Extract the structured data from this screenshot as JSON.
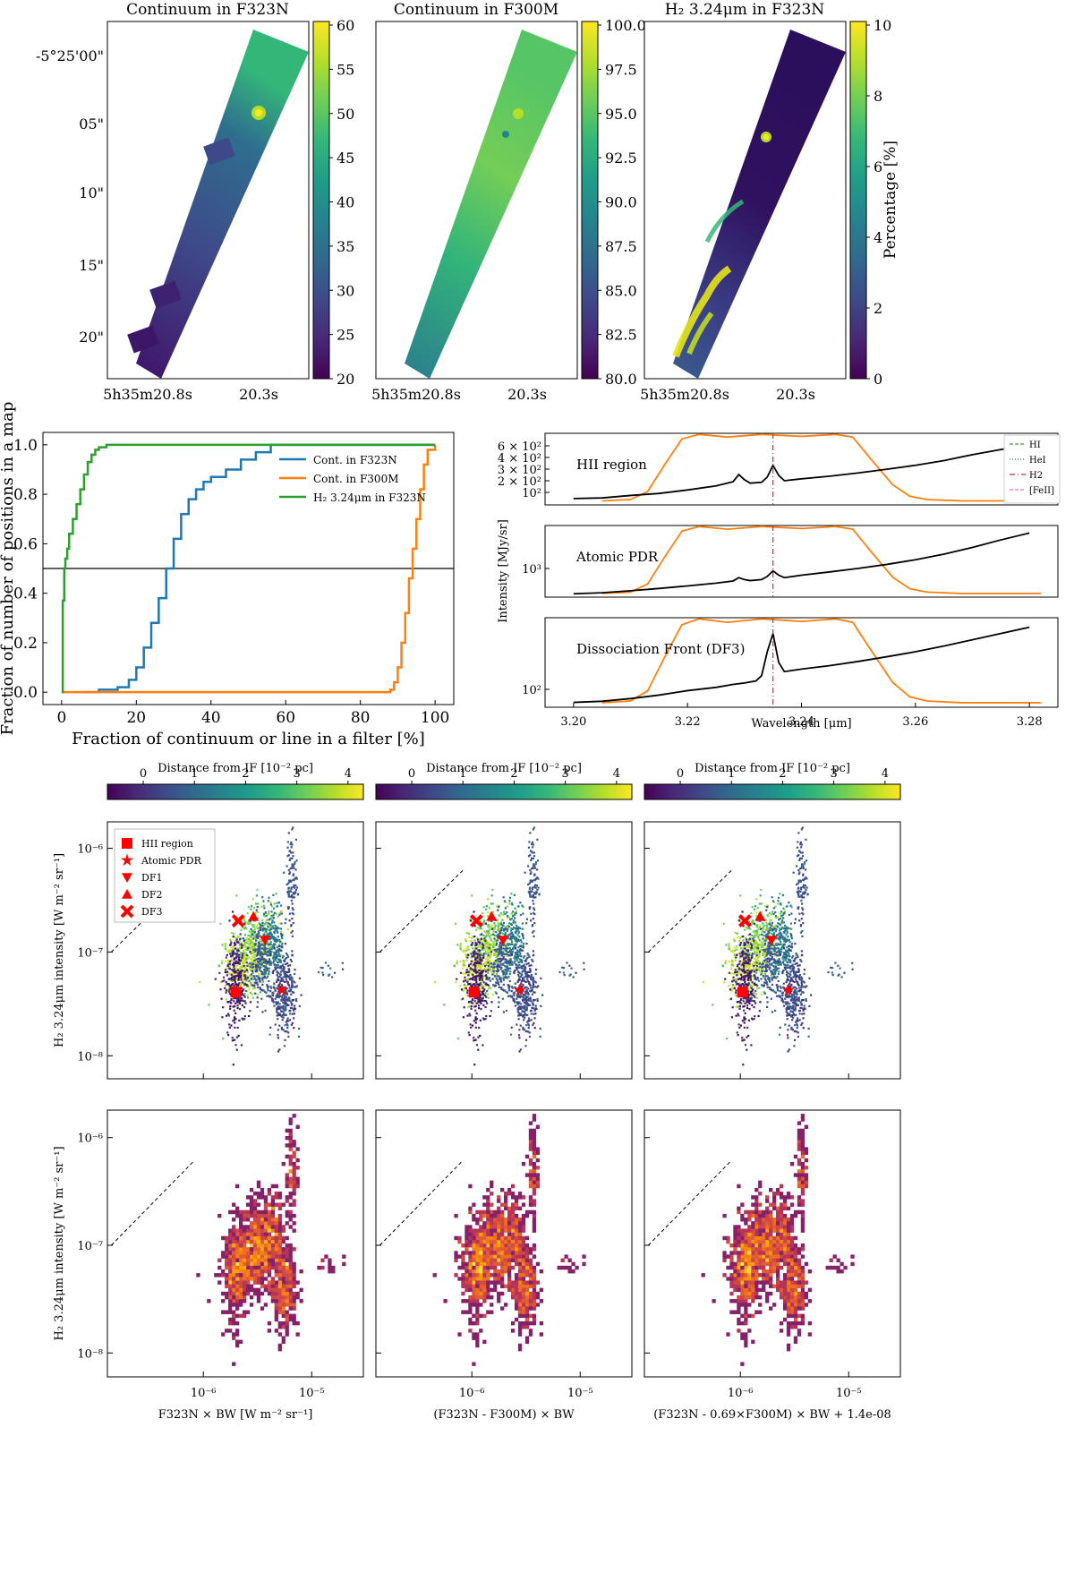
{
  "colors": {
    "blue": "#1f77b4",
    "orange": "#ff7f0e",
    "green": "#2ca02c",
    "red": "#ff0000",
    "viridis": [
      "#440154",
      "#482878",
      "#3e4989",
      "#31688e",
      "#26828e",
      "#1f9e89",
      "#35b779",
      "#6ece58",
      "#b5de2b",
      "#fde725"
    ],
    "inferno": [
      "#140b34",
      "#3b0f70",
      "#6a176e",
      "#932667",
      "#bc3754",
      "#dd513a",
      "#f37819",
      "#fca50a",
      "#f6d746",
      "#fcffa4"
    ]
  },
  "maps": {
    "panels": [
      {
        "title": "Continuum in F323N",
        "cbar_ticks": [
          "60",
          "55",
          "50",
          "45",
          "40",
          "35",
          "30",
          "25",
          "20"
        ],
        "cbar_label": ""
      },
      {
        "title": "Continuum in F300M",
        "cbar_ticks": [
          "100.0",
          "97.5",
          "95.0",
          "92.5",
          "90.0",
          "87.5",
          "85.0",
          "82.5",
          "80.0"
        ],
        "cbar_label": ""
      },
      {
        "title": "H₂ 3.24μm in F323N",
        "cbar_ticks": [
          "10",
          "8",
          "6",
          "4",
          "2",
          "0"
        ],
        "cbar_label": "Percentage [%]"
      }
    ],
    "dec_ticks": [
      "-5°25'00\"",
      "05\"",
      "10\"",
      "15\"",
      "20\""
    ],
    "ra_ticks": [
      "5h35m20.8s",
      "20.3s"
    ]
  },
  "chart_data": [
    {
      "type": "line",
      "title": "",
      "xlabel": "Fraction of continuum or line in a filter [%]",
      "ylabel": "Fraction of number of positions in a map",
      "xlim": [
        -5,
        105
      ],
      "ylim": [
        -0.05,
        1.05
      ],
      "xticks": [
        "0",
        "20",
        "40",
        "60",
        "80",
        "100"
      ],
      "yticks": [
        "0.0",
        "0.2",
        "0.4",
        "0.6",
        "0.8",
        "1.0"
      ],
      "hline": 0.5,
      "legend": "upper-right",
      "series": [
        {
          "name": "Cont. in F323N",
          "x": [
            5,
            10,
            15,
            18,
            20,
            22,
            24,
            26,
            28,
            30,
            32,
            34,
            36,
            38,
            40,
            44,
            48,
            52,
            56,
            100
          ],
          "y": [
            0,
            0.01,
            0.02,
            0.05,
            0.1,
            0.18,
            0.28,
            0.38,
            0.5,
            0.62,
            0.72,
            0.78,
            0.82,
            0.85,
            0.87,
            0.9,
            0.94,
            0.97,
            1,
            1
          ]
        },
        {
          "name": "Cont. in F300M",
          "x": [
            0,
            86,
            88,
            89,
            90,
            91,
            92,
            93,
            94,
            95,
            96,
            97,
            98,
            100
          ],
          "y": [
            0,
            0,
            0.01,
            0.04,
            0.1,
            0.2,
            0.32,
            0.46,
            0.58,
            0.7,
            0.82,
            0.92,
            0.98,
            1
          ]
        },
        {
          "name": "H₂ 3.24μm in F323N",
          "x": [
            0,
            0.3,
            0.7,
            1,
            1.5,
            2,
            3,
            4,
            5,
            6,
            7,
            8,
            9,
            10,
            12,
            15,
            100
          ],
          "y": [
            0,
            0.37,
            0.5,
            0.54,
            0.58,
            0.64,
            0.7,
            0.76,
            0.82,
            0.88,
            0.93,
            0.96,
            0.98,
            0.99,
            1,
            1,
            1
          ]
        }
      ]
    },
    {
      "type": "line",
      "xlabel": "Wavelength [μm]",
      "ylabel": "Intensity [MJy/sr]",
      "xlim": [
        3.195,
        3.285
      ],
      "xticks": [
        "3.20",
        "3.22",
        "3.24",
        "3.26",
        "3.28"
      ],
      "h2_line": 3.235,
      "legend_entries": [
        "HI",
        "HeI",
        "H2",
        "[FeII]"
      ],
      "filter_x": [
        3.205,
        3.21,
        3.213,
        3.216,
        3.219,
        3.222,
        3.227,
        3.233,
        3.24,
        3.246,
        3.249,
        3.252,
        3.256,
        3.259,
        3.262,
        3.268,
        3.282
      ],
      "filter_y": [
        0.01,
        0.03,
        0.15,
        0.55,
        0.93,
        1.0,
        0.96,
        1.0,
        0.97,
        1.0,
        0.96,
        0.65,
        0.25,
        0.08,
        0.03,
        0.01,
        0.01
      ],
      "subplots": [
        {
          "label": "HII region",
          "yticks": [
            "6 × 10²",
            "4 × 10²",
            "3 × 10²",
            "2 × 10²",
            "10²"
          ],
          "ylog": [
            90,
            700
          ],
          "spectrum_x": [
            3.2,
            3.205,
            3.21,
            3.215,
            3.22,
            3.225,
            3.228,
            3.229,
            3.23,
            3.231,
            3.233,
            3.234,
            3.235,
            3.236,
            3.237,
            3.24,
            3.245,
            3.25,
            3.255,
            3.26,
            3.265,
            3.27,
            3.275,
            3.28
          ],
          "spectrum_y": [
            108,
            110,
            118,
            125,
            138,
            155,
            175,
            215,
            185,
            168,
            172,
            200,
            280,
            210,
            180,
            190,
            205,
            225,
            250,
            280,
            320,
            380,
            440,
            500
          ]
        },
        {
          "label": "Atomic PDR",
          "yticks": [
            "10³"
          ],
          "ylog": [
            270,
            2600
          ],
          "spectrum_x": [
            3.2,
            3.205,
            3.21,
            3.215,
            3.22,
            3.225,
            3.228,
            3.229,
            3.23,
            3.231,
            3.233,
            3.234,
            3.235,
            3.236,
            3.237,
            3.24,
            3.245,
            3.25,
            3.255,
            3.26,
            3.265,
            3.27,
            3.275,
            3.28
          ],
          "spectrum_y": [
            300,
            310,
            330,
            355,
            385,
            420,
            450,
            500,
            470,
            455,
            470,
            520,
            620,
            540,
            500,
            540,
            600,
            670,
            760,
            880,
            1050,
            1300,
            1650,
            2050
          ]
        },
        {
          "label": "Dissociation Front (DF3)",
          "yticks": [
            "10²"
          ],
          "ylog": [
            60,
            600
          ],
          "spectrum_x": [
            3.2,
            3.205,
            3.21,
            3.215,
            3.22,
            3.225,
            3.228,
            3.23,
            3.232,
            3.233,
            3.234,
            3.235,
            3.236,
            3.237,
            3.24,
            3.245,
            3.25,
            3.255,
            3.26,
            3.265,
            3.27,
            3.275,
            3.28
          ],
          "spectrum_y": [
            68,
            70,
            75,
            82,
            92,
            100,
            108,
            112,
            118,
            135,
            250,
            400,
            190,
            150,
            160,
            175,
            195,
            220,
            250,
            290,
            340,
            400,
            470
          ]
        }
      ]
    },
    {
      "type": "scatter",
      "xlabels": [
        "F323N × BW [W m⁻² sr⁻¹]",
        "(F323N - F300M) × BW",
        "(F323N - 0.69×F300M) × BW + 1.4e-08"
      ],
      "ylabel": "H₂ 3.24μm intensity [W m⁻² sr⁻¹]",
      "xticks": [
        "10⁻⁶",
        "10⁻⁵"
      ],
      "yticks": [
        "10⁻⁶",
        "10⁻⁷",
        "10⁻⁸"
      ],
      "xlog": [
        1.3e-07,
        3e-05
      ],
      "ylog": [
        6e-09,
        1.8e-06
      ],
      "colorbar_label": "Distance from IF [10⁻² pc]",
      "colorbar_ticks": [
        "0",
        "1",
        "2",
        "3",
        "4"
      ],
      "colorbar_range": [
        -0.7,
        4.3
      ],
      "markers": [
        {
          "name": "HII region",
          "shape": "square",
          "x": 2e-06,
          "y": 4.1e-08
        },
        {
          "name": "Atomic PDR",
          "shape": "star",
          "x": 5.3e-06,
          "y": 4.3e-08
        },
        {
          "name": "DF1",
          "shape": "triangle-down",
          "x": 3.7e-06,
          "y": 1.3e-07
        },
        {
          "name": "DF2",
          "shape": "triangle-up",
          "x": 2.9e-06,
          "y": 2.2e-07
        },
        {
          "name": "DF3",
          "shape": "x",
          "x": 2.1e-06,
          "y": 2e-07
        }
      ]
    },
    {
      "type": "heatmap",
      "xlabels": [
        "F323N × BW [W m⁻² sr⁻¹]",
        "(F323N - F300M) × BW",
        "(F323N - 0.69×F300M) × BW + 1.4e-08"
      ],
      "ylabel": "H₂ 3.24μm intensity [W m⁻² sr⁻¹]",
      "xticks": [
        "10⁻⁶",
        "10⁻⁵"
      ],
      "yticks": [
        "10⁻⁶",
        "10⁻⁷",
        "10⁻⁸"
      ]
    }
  ]
}
